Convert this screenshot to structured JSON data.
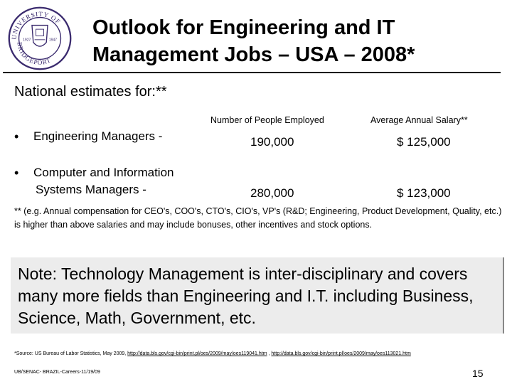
{
  "logo": {
    "arc_top": "UNIVERSITY OF",
    "arc_bottom": "BRIDGEPORT",
    "year_left": "1927",
    "year_right": "1947"
  },
  "title": {
    "line1": "Outlook for Engineering and IT",
    "line2": "Management Jobs – USA – 2008*"
  },
  "subhead": "National estimates for:**",
  "table": {
    "col_headers": [
      "Number of People Employed",
      "Average Annual Salary**"
    ],
    "rows": [
      {
        "bullet": "•",
        "label_line1": "Engineering Managers  -",
        "label_line2": "",
        "employed": "190,000",
        "salary": "$ 125,000"
      },
      {
        "bullet": "•",
        "label_line1": "Computer and Information",
        "label_line2": "Systems Managers -",
        "employed": "280,000",
        "salary": "$ 123,000"
      }
    ]
  },
  "footnote": "** (e.g. Annual compensation for CEO's, COO's, CTO's, CIO's, VP's (R&D; Engineering, Product Development, Quality, etc.) is higher than above salaries and may include bonuses, other incentives and stock options.",
  "note": "Note: Technology Management is inter-disciplinary and covers many more fields than Engineering and I.T. including Business, Science, Math, Government, etc.",
  "source": {
    "prefix": "*Source: US Bureau of Labor Statistics, May 2009,",
    "link1": "http://data.bls.gov/cgi-bin/print.pl/oes/2009/may/oes119041.htm",
    "separator": ",",
    "link2": "http://data.bls.gov/cgi-bin/print.pl/oes/2009/may/oes113021.htm"
  },
  "footer_left": "UB/SENAC- BRAZIL-Careers-11/19/09",
  "page_number": "15"
}
